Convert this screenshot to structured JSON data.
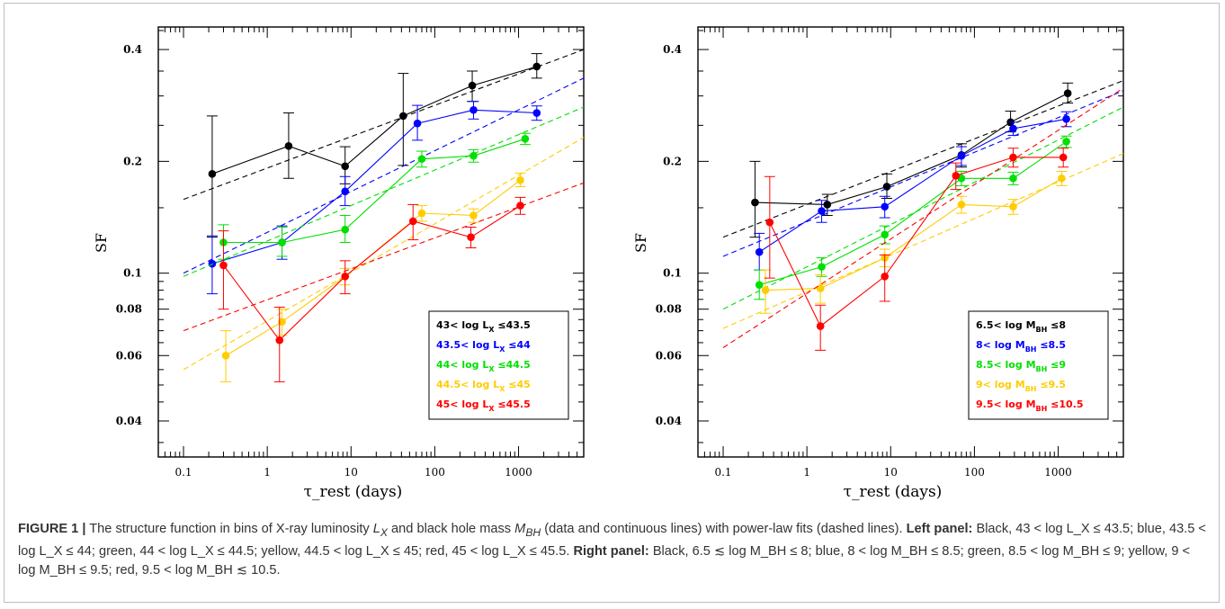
{
  "chart_data": [
    {
      "type": "line",
      "panel": "left",
      "xlabel": "τ_rest (days)",
      "ylabel": "SF",
      "xscale": "log",
      "yscale": "log",
      "xlim": [
        0.05,
        6000
      ],
      "ylim": [
        0.032,
        0.46
      ],
      "x_ticks": [
        "0.1",
        "1",
        "10",
        "100",
        "1000"
      ],
      "y_ticks": [
        "0.04",
        "0.06",
        "0.08",
        "0.1",
        "0.2",
        "0.4"
      ],
      "legend_position": "bottom-right",
      "series": [
        {
          "name": "43< log Lx ≤43.5",
          "color": "#000000",
          "x": [
            0.22,
            1.8,
            8.5,
            42,
            280,
            1650
          ],
          "y": [
            0.185,
            0.22,
            0.194,
            0.265,
            0.32,
            0.36
          ],
          "yerr_lo": [
            0.06,
            0.04,
            0.02,
            0.07,
            0.03,
            0.025
          ],
          "yerr_hi": [
            0.08,
            0.05,
            0.025,
            0.08,
            0.03,
            0.03
          ],
          "fit": {
            "x": [
              0.1,
              6000
            ],
            "y": [
              0.158,
              0.4
            ]
          }
        },
        {
          "name": "43.5< log Lx ≤44",
          "color": "#0000ff",
          "x": [
            0.22,
            1.5,
            8.5,
            62,
            290,
            1650
          ],
          "y": [
            0.106,
            0.121,
            0.166,
            0.253,
            0.275,
            0.27
          ],
          "yerr_lo": [
            0.018,
            0.012,
            0.014,
            0.025,
            0.015,
            0.012
          ],
          "yerr_hi": [
            0.02,
            0.013,
            0.016,
            0.03,
            0.015,
            0.012
          ],
          "fit": {
            "x": [
              0.1,
              6000
            ],
            "y": [
              0.1,
              0.335
            ]
          }
        },
        {
          "name": "44< log Lx ≤44.5",
          "color": "#00e000",
          "x": [
            0.3,
            1.5,
            8.5,
            70,
            290,
            1200
          ],
          "y": [
            0.121,
            0.121,
            0.131,
            0.203,
            0.207,
            0.23
          ],
          "yerr_lo": [
            0.012,
            0.01,
            0.01,
            0.01,
            0.008,
            0.008
          ],
          "yerr_hi": [
            0.014,
            0.012,
            0.012,
            0.01,
            0.008,
            0.008
          ],
          "fit": {
            "x": [
              0.1,
              6000
            ],
            "y": [
              0.098,
              0.28
            ]
          }
        },
        {
          "name": "44.5< log Lx ≤45",
          "color": "#ffcc00",
          "x": [
            0.32,
            1.5,
            8.5,
            70,
            290,
            1050
          ],
          "y": [
            0.06,
            0.074,
            0.098,
            0.145,
            0.143,
            0.178
          ],
          "yerr_lo": [
            0.009,
            0.006,
            0.005,
            0.007,
            0.006,
            0.007
          ],
          "yerr_hi": [
            0.01,
            0.006,
            0.005,
            0.007,
            0.006,
            0.008
          ],
          "fit": {
            "x": [
              0.1,
              6000
            ],
            "y": [
              0.055,
              0.232
            ]
          }
        },
        {
          "name": "45< log Lx ≤45.5",
          "color": "#ff0000",
          "x": [
            0.3,
            1.4,
            8.5,
            55,
            270,
            1050
          ],
          "y": [
            0.105,
            0.066,
            0.098,
            0.138,
            0.125,
            0.152
          ],
          "yerr_lo": [
            0.025,
            0.015,
            0.01,
            0.015,
            0.008,
            0.008
          ],
          "yerr_hi": [
            0.025,
            0.015,
            0.01,
            0.015,
            0.008,
            0.008
          ],
          "fit": {
            "x": [
              0.1,
              6000
            ],
            "y": [
              0.07,
              0.175
            ]
          }
        }
      ],
      "legend_labels": [
        {
          "text": "43< log L",
          "sub": "X",
          "tail": " ≤43.5",
          "color": "#000000"
        },
        {
          "text": "43.5< log L",
          "sub": "X",
          "tail": " ≤44",
          "color": "#0000ff"
        },
        {
          "text": "44< log L",
          "sub": "X",
          "tail": " ≤44.5",
          "color": "#00e000"
        },
        {
          "text": "44.5< log L",
          "sub": "X",
          "tail": " ≤45",
          "color": "#ffcc00"
        },
        {
          "text": "45< log L",
          "sub": "X",
          "tail": " ≤45.5",
          "color": "#ff0000"
        }
      ]
    },
    {
      "type": "line",
      "panel": "right",
      "xlabel": "τ_rest (days)",
      "ylabel": "SF",
      "xscale": "log",
      "yscale": "log",
      "xlim": [
        0.05,
        6000
      ],
      "ylim": [
        0.032,
        0.46
      ],
      "x_ticks": [
        "0.1",
        "1",
        "10",
        "100",
        "1000"
      ],
      "y_ticks": [
        "0.04",
        "0.06",
        "0.08",
        "0.1",
        "0.2",
        "0.4"
      ],
      "legend_position": "bottom-right",
      "series": [
        {
          "name": "6.5< log MBH ≤8",
          "color": "#000000",
          "x": [
            0.24,
            1.75,
            9,
            70,
            270,
            1300
          ],
          "y": [
            0.155,
            0.153,
            0.171,
            0.208,
            0.255,
            0.305
          ],
          "yerr_lo": [
            0.03,
            0.01,
            0.012,
            0.015,
            0.015,
            0.018
          ],
          "yerr_hi": [
            0.045,
            0.01,
            0.014,
            0.015,
            0.018,
            0.02
          ],
          "fit": {
            "x": [
              0.1,
              6000
            ],
            "y": [
              0.125,
              0.33
            ]
          }
        },
        {
          "name": "8< log MBH ≤8.5",
          "color": "#0000ff",
          "x": [
            0.27,
            1.5,
            8.5,
            70,
            290,
            1250
          ],
          "y": [
            0.114,
            0.147,
            0.151,
            0.207,
            0.245,
            0.26
          ],
          "yerr_lo": [
            0.012,
            0.01,
            0.01,
            0.012,
            0.01,
            0.012
          ],
          "yerr_hi": [
            0.014,
            0.01,
            0.01,
            0.012,
            0.01,
            0.012
          ],
          "fit": {
            "x": [
              0.1,
              6000
            ],
            "y": [
              0.111,
              0.31
            ]
          }
        },
        {
          "name": "8.5< log MBH ≤9",
          "color": "#00e000",
          "x": [
            0.27,
            1.5,
            8.5,
            70,
            290,
            1250
          ],
          "y": [
            0.093,
            0.104,
            0.127,
            0.18,
            0.18,
            0.226
          ],
          "yerr_lo": [
            0.008,
            0.006,
            0.007,
            0.008,
            0.007,
            0.008
          ],
          "yerr_hi": [
            0.009,
            0.006,
            0.007,
            0.008,
            0.007,
            0.008
          ],
          "fit": {
            "x": [
              0.1,
              6000
            ],
            "y": [
              0.08,
              0.28
            ]
          }
        },
        {
          "name": "9< log MBH ≤9.5",
          "color": "#ffcc00",
          "x": [
            0.32,
            1.45,
            8.5,
            70,
            290,
            1100
          ],
          "y": [
            0.09,
            0.091,
            0.11,
            0.153,
            0.151,
            0.18
          ],
          "yerr_lo": [
            0.012,
            0.008,
            0.006,
            0.008,
            0.007,
            0.008
          ],
          "yerr_hi": [
            0.012,
            0.008,
            0.006,
            0.008,
            0.007,
            0.008
          ],
          "fit": {
            "x": [
              0.1,
              6000
            ],
            "y": [
              0.071,
              0.21
            ]
          }
        },
        {
          "name": "9.5< log MBH ≤10.5",
          "color": "#ff0000",
          "x": [
            0.36,
            1.45,
            8.5,
            60,
            290,
            1150
          ],
          "y": [
            0.137,
            0.072,
            0.098,
            0.183,
            0.205,
            0.205
          ],
          "yerr_lo": [
            0.04,
            0.01,
            0.014,
            0.015,
            0.012,
            0.012
          ],
          "yerr_hi": [
            0.045,
            0.01,
            0.014,
            0.015,
            0.012,
            0.012
          ],
          "fit": {
            "x": [
              0.1,
              6000
            ],
            "y": [
              0.063,
              0.315
            ]
          }
        }
      ],
      "legend_labels": [
        {
          "text": "6.5< log M",
          "sub": "BH",
          "tail": " ≤8",
          "color": "#000000"
        },
        {
          "text": "8< log M",
          "sub": "BH",
          "tail": " ≤8.5",
          "color": "#0000ff"
        },
        {
          "text": "8.5< log M",
          "sub": "BH",
          "tail": " ≤9",
          "color": "#00e000"
        },
        {
          "text": "9< log M",
          "sub": "BH",
          "tail": " ≤9.5",
          "color": "#ffcc00"
        },
        {
          "text": "9.5< log M",
          "sub": "BH",
          "tail": " ≤10.5",
          "color": "#ff0000"
        }
      ]
    }
  ],
  "caption": {
    "label": "FIGURE 1 |",
    "line1_a": " The structure function in bins of X-ray luminosity ",
    "lx": "L",
    "lx_sub": "X",
    "line1_b": " and black hole mass ",
    "mbh": "M",
    "mbh_sub": "BH",
    "line1_c": " (data and continuous lines) with power-law fits (dashed lines). ",
    "left_label": "Left panel:",
    "left_text": " Black, 43 < log L_X ≤ 43.5; blue, 43.5 < log L_X ≤ 44; green, 44 < log L_X ≤ 44.5; yellow, 44.5 < log L_X ≤ 45; red, 45 < log L_X ≤ 45.5. ",
    "right_label": "Right panel:",
    "right_text": " Black, 6.5 ≲ log M_BH ≤ 8; blue, 8 < log M_BH ≤ 8.5; green, 8.5 < log M_BH ≤ 9; yellow, 9 < log M_BH ≤ 9.5; red, 9.5 < log M_BH ≲ 10.5."
  }
}
